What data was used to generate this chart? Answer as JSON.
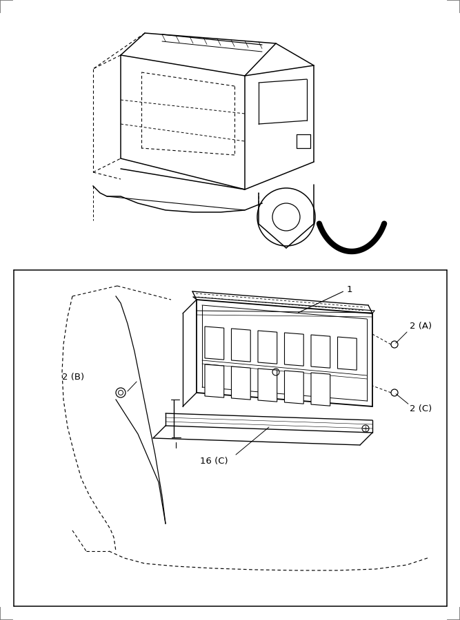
{
  "bg_color": "#ffffff",
  "line_color": "#000000",
  "border_corner_color": "#777777",
  "fig_width": 6.67,
  "fig_height": 9.0,
  "dpi": 100,
  "labels": {
    "1": "1",
    "2A": "2 (A)",
    "2B": "2 (B)",
    "2C": "2 (C)",
    "16C": "16 (C)"
  }
}
